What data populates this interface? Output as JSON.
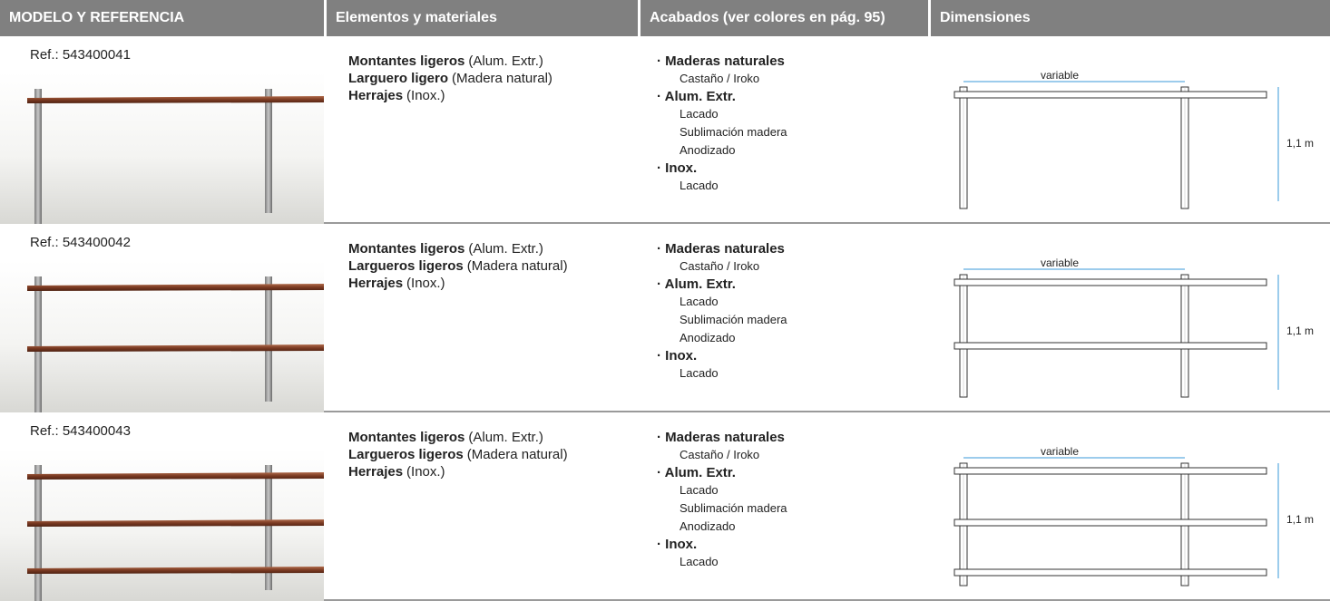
{
  "header": {
    "columns": [
      "MODELO Y REFERENCIA",
      "Elementos y materiales",
      "Acabados (ver colores en pág. 95)",
      "Dimensiones"
    ]
  },
  "rows": [
    {
      "reference": "Ref.: 543400041",
      "elements": [
        {
          "name": "Montantes ligeros",
          "material": "(Alum. Extr.)"
        },
        {
          "name": "Larguero ligero",
          "material": "(Madera natural)"
        },
        {
          "name": "Herrajes",
          "material": "(Inox.)"
        }
      ],
      "finishes": [
        {
          "group": "· Maderas naturales",
          "items": [
            "Castaño / Iroko"
          ]
        },
        {
          "group": "· Alum. Extr.",
          "items": [
            "Lacado",
            "Sublimación madera",
            "Anodizado"
          ]
        },
        {
          "group": "· Inox.",
          "items": [
            "Lacado"
          ]
        }
      ],
      "dimensions": {
        "width": "variable",
        "height": "1,1 m"
      }
    },
    {
      "reference": "Ref.: 543400042",
      "elements": [
        {
          "name": "Montantes ligeros",
          "material": "(Alum. Extr.)"
        },
        {
          "name": "Largueros ligeros",
          "material": "(Madera natural)"
        },
        {
          "name": "Herrajes",
          "material": "(Inox.)"
        }
      ],
      "finishes": [
        {
          "group": "· Maderas naturales",
          "items": [
            "Castaño / Iroko"
          ]
        },
        {
          "group": "· Alum. Extr.",
          "items": [
            "Lacado",
            "Sublimación madera",
            "Anodizado"
          ]
        },
        {
          "group": "· Inox.",
          "items": [
            "Lacado"
          ]
        }
      ],
      "dimensions": {
        "width": "variable",
        "height": "1,1 m"
      }
    },
    {
      "reference": "Ref.: 543400043",
      "elements": [
        {
          "name": "Montantes ligeros",
          "material": "(Alum. Extr.)"
        },
        {
          "name": "Largueros ligeros",
          "material": "(Madera natural)"
        },
        {
          "name": "Herrajes",
          "material": "(Inox.)"
        }
      ],
      "finishes": [
        {
          "group": "· Maderas naturales",
          "items": [
            "Castaño / Iroko"
          ]
        },
        {
          "group": "· Alum. Extr.",
          "items": [
            "Lacado",
            "Sublimación madera",
            "Anodizado"
          ]
        },
        {
          "group": "· Inox.",
          "items": [
            "Lacado"
          ]
        }
      ],
      "dimensions": {
        "width": "variable",
        "height": "1,1 m"
      }
    }
  ]
}
